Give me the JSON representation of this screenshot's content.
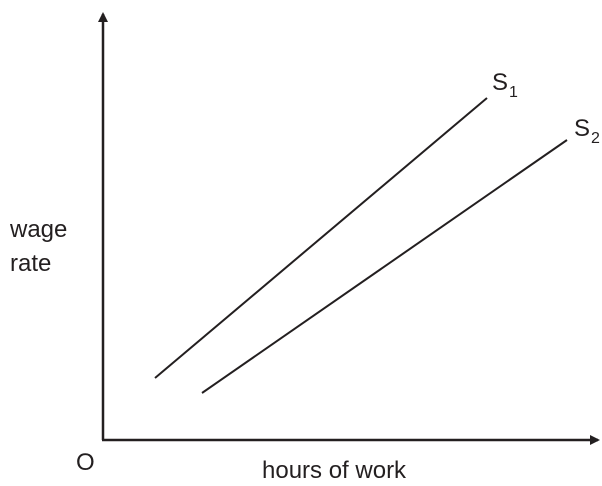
{
  "axes": {
    "y_label_lines": [
      "wage",
      "rate"
    ],
    "x_label": "hours of work",
    "origin": "O"
  },
  "curves": [
    {
      "label": "S",
      "subscript": "1"
    },
    {
      "label": "S",
      "subscript": "2"
    }
  ]
}
